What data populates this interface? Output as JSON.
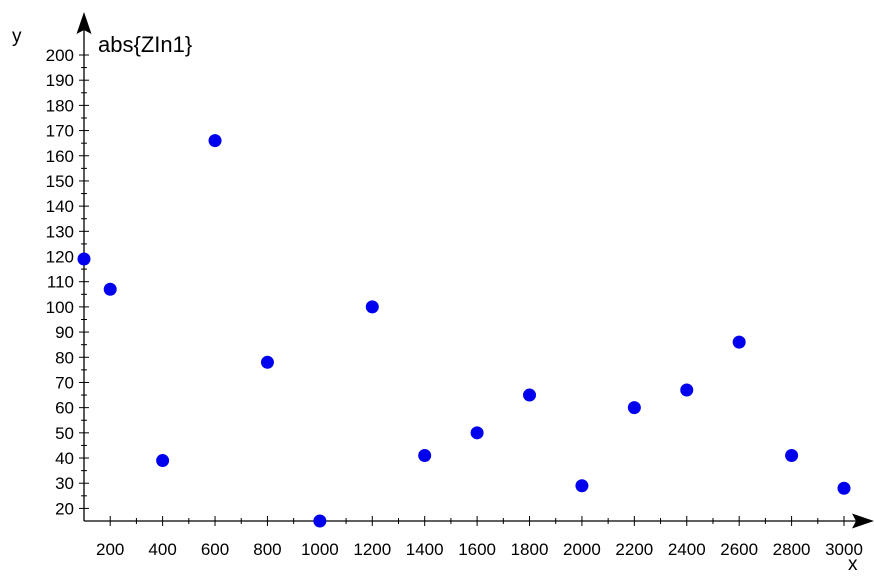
{
  "chart_data": {
    "type": "scatter",
    "title": "abs{ZIn1}",
    "xlabel": "x",
    "ylabel": "y",
    "xlim": [
      100,
      3000
    ],
    "ylim": [
      15,
      200
    ],
    "x_ticks": [
      200,
      400,
      600,
      800,
      1000,
      1200,
      1400,
      1600,
      1800,
      2000,
      2200,
      2400,
      2600,
      2800,
      3000
    ],
    "y_ticks": [
      20,
      30,
      40,
      50,
      60,
      70,
      80,
      90,
      100,
      110,
      120,
      130,
      140,
      150,
      160,
      170,
      180,
      190,
      200
    ],
    "grid": false,
    "series": [
      {
        "color": "#0000ee",
        "points": [
          {
            "x": 100,
            "y": 119
          },
          {
            "x": 200,
            "y": 107
          },
          {
            "x": 400,
            "y": 39
          },
          {
            "x": 600,
            "y": 166
          },
          {
            "x": 800,
            "y": 78
          },
          {
            "x": 1000,
            "y": 15
          },
          {
            "x": 1200,
            "y": 100
          },
          {
            "x": 1400,
            "y": 41
          },
          {
            "x": 1600,
            "y": 50
          },
          {
            "x": 1800,
            "y": 65
          },
          {
            "x": 2000,
            "y": 29
          },
          {
            "x": 2200,
            "y": 60
          },
          {
            "x": 2400,
            "y": 67
          },
          {
            "x": 2600,
            "y": 86
          },
          {
            "x": 2800,
            "y": 41
          },
          {
            "x": 3000,
            "y": 28
          }
        ]
      }
    ]
  }
}
